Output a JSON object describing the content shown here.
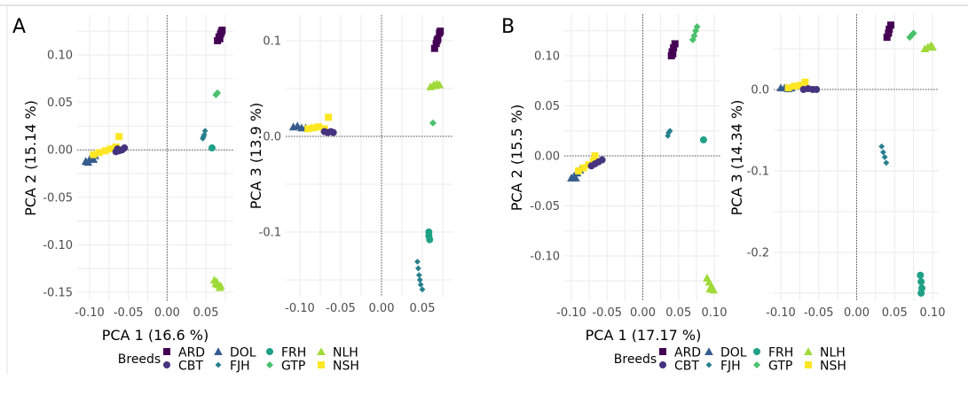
{
  "figure": {
    "letters": [
      "A",
      "B"
    ]
  },
  "legend": {
    "title": "Breeds",
    "entries": [
      {
        "name": "ARD",
        "color": "#440154",
        "shape": "square"
      },
      {
        "name": "CBT",
        "color": "#46337e",
        "shape": "circle"
      },
      {
        "name": "DOL",
        "color": "#365c8d",
        "shape": "triangle"
      },
      {
        "name": "FJH",
        "color": "#277f8e",
        "shape": "diamond-small"
      },
      {
        "name": "FRH",
        "color": "#1fa187",
        "shape": "circle"
      },
      {
        "name": "GTP",
        "color": "#4ac16d",
        "shape": "diamond"
      },
      {
        "name": "NLH",
        "color": "#a0da39",
        "shape": "triangle"
      },
      {
        "name": "NSH",
        "color": "#fde725",
        "shape": "square"
      }
    ]
  },
  "chart_data": [
    {
      "type": "scatter",
      "panel": "A",
      "xlabel": "PCA 1 (16.6 %)",
      "ylabel": "PCA 2 (15.14 %)",
      "xticks": [
        "-0.10",
        "-0.05",
        "0.00",
        "0.05"
      ],
      "xtick_values": [
        -0.1,
        -0.05,
        0.0,
        0.05
      ],
      "yticks": [
        "0.10",
        "0.05",
        "0.00",
        "-0.05",
        "-0.10",
        "-0.15"
      ],
      "ytick_values": [
        0.1,
        0.05,
        0.0,
        -0.05,
        -0.1,
        -0.15
      ],
      "series": {
        "ARD": [
          [
            0.065,
            0.115
          ],
          [
            0.067,
            0.119
          ],
          [
            0.069,
            0.122
          ],
          [
            0.071,
            0.126
          ],
          [
            0.068,
            0.117
          ],
          [
            0.07,
            0.124
          ]
        ],
        "GTP": [
          [
            0.063,
            0.058
          ],
          [
            0.065,
            0.06
          ]
        ],
        "FJH": [
          [
            0.046,
            0.012
          ],
          [
            0.048,
            0.016
          ],
          [
            0.049,
            0.02
          ],
          [
            0.047,
            0.014
          ]
        ],
        "FRH": [
          [
            0.058,
            0.002
          ]
        ],
        "NLH": [
          [
            0.061,
            -0.137
          ],
          [
            0.064,
            -0.139
          ],
          [
            0.066,
            -0.142
          ],
          [
            0.068,
            -0.145
          ],
          [
            0.063,
            -0.141
          ],
          [
            0.069,
            -0.143
          ]
        ],
        "DOL": [
          [
            -0.105,
            -0.012
          ],
          [
            -0.1,
            -0.01
          ],
          [
            -0.097,
            -0.008
          ],
          [
            -0.093,
            -0.006
          ],
          [
            -0.102,
            -0.013
          ],
          [
            -0.095,
            -0.01
          ]
        ],
        "NSH": [
          [
            -0.095,
            -0.005
          ],
          [
            -0.088,
            -0.003
          ],
          [
            -0.08,
            -0.001
          ],
          [
            -0.073,
            0.001
          ],
          [
            -0.066,
            0.003
          ],
          [
            -0.062,
            0.014
          ]
        ],
        "CBT": [
          [
            -0.066,
            -0.002
          ],
          [
            -0.062,
            -0.001
          ],
          [
            -0.058,
            0.0
          ],
          [
            -0.055,
            0.002
          ],
          [
            -0.064,
            0.001
          ]
        ]
      }
    },
    {
      "type": "scatter",
      "panel": "A",
      "xlabel": "",
      "ylabel": "PCA 3 (13.9 %)",
      "xticks": [
        "-0.10",
        "-0.05",
        "0.00",
        "0.05"
      ],
      "xtick_values": [
        -0.1,
        -0.05,
        0.0,
        0.05
      ],
      "yticks": [
        "0.1",
        "0.0",
        "-0.1"
      ],
      "ytick_values": [
        0.1,
        0.0,
        -0.1
      ],
      "series": {
        "ARD": [
          [
            0.065,
            0.092
          ],
          [
            0.067,
            0.097
          ],
          [
            0.069,
            0.102
          ],
          [
            0.071,
            0.108
          ],
          [
            0.068,
            0.1
          ],
          [
            0.072,
            0.11
          ]
        ],
        "NLH": [
          [
            0.06,
            0.052
          ],
          [
            0.064,
            0.054
          ],
          [
            0.068,
            0.055
          ],
          [
            0.071,
            0.054
          ],
          [
            0.066,
            0.053
          ]
        ],
        "GTP": [
          [
            0.063,
            0.014
          ]
        ],
        "FRH": [
          [
            0.058,
            -0.1
          ],
          [
            0.058,
            -0.104
          ],
          [
            0.059,
            -0.108
          ]
        ],
        "FJH": [
          [
            0.044,
            -0.131
          ],
          [
            0.045,
            -0.138
          ],
          [
            0.046,
            -0.145
          ],
          [
            0.047,
            -0.15
          ],
          [
            0.048,
            -0.155
          ],
          [
            0.05,
            -0.16
          ]
        ],
        "DOL": [
          [
            -0.108,
            0.01
          ],
          [
            -0.103,
            0.011
          ],
          [
            -0.098,
            0.009
          ],
          [
            -0.093,
            0.009
          ]
        ],
        "NSH": [
          [
            -0.09,
            0.008
          ],
          [
            -0.083,
            0.009
          ],
          [
            -0.077,
            0.01
          ],
          [
            -0.07,
            0.008
          ],
          [
            -0.065,
            0.02
          ]
        ],
        "CBT": [
          [
            -0.07,
            0.005
          ],
          [
            -0.066,
            0.004
          ],
          [
            -0.062,
            0.005
          ],
          [
            -0.059,
            0.004
          ]
        ]
      }
    },
    {
      "type": "scatter",
      "panel": "B",
      "xlabel": "PCA 1 (17.17 %)",
      "ylabel": "PCA 2 (15.5 %)",
      "xticks": [
        "-0.10",
        "-0.05",
        "0.00",
        "0.05",
        "0.10"
      ],
      "xtick_values": [
        -0.1,
        -0.05,
        0.0,
        0.05,
        0.1
      ],
      "yticks": [
        "0.10",
        "0.05",
        "0.00",
        "-0.05",
        "-0.10"
      ],
      "ytick_values": [
        0.1,
        0.05,
        0.0,
        -0.05,
        -0.1
      ],
      "series": {
        "ARD": [
          [
            0.04,
            0.1
          ],
          [
            0.041,
            0.104
          ],
          [
            0.043,
            0.108
          ],
          [
            0.045,
            0.112
          ],
          [
            0.042,
            0.102
          ]
        ],
        "GTP": [
          [
            0.07,
            0.116
          ],
          [
            0.072,
            0.12
          ],
          [
            0.074,
            0.125
          ],
          [
            0.076,
            0.129
          ]
        ],
        "FJH": [
          [
            0.035,
            0.02
          ],
          [
            0.036,
            0.023
          ],
          [
            0.038,
            0.025
          ]
        ],
        "FRH": [
          [
            0.085,
            0.016
          ]
        ],
        "NLH": [
          [
            0.09,
            -0.122
          ],
          [
            0.093,
            -0.126
          ],
          [
            0.096,
            -0.13
          ],
          [
            0.099,
            -0.134
          ],
          [
            0.094,
            -0.133
          ]
        ],
        "DOL": [
          [
            -0.1,
            -0.022
          ],
          [
            -0.096,
            -0.02
          ],
          [
            -0.092,
            -0.017
          ],
          [
            -0.088,
            -0.014
          ],
          [
            -0.094,
            -0.022
          ]
        ],
        "NSH": [
          [
            -0.09,
            -0.015
          ],
          [
            -0.083,
            -0.012
          ],
          [
            -0.076,
            -0.009
          ],
          [
            -0.069,
            -0.005
          ],
          [
            -0.067,
            0.0
          ]
        ],
        "CBT": [
          [
            -0.072,
            -0.01
          ],
          [
            -0.067,
            -0.008
          ],
          [
            -0.062,
            -0.006
          ],
          [
            -0.057,
            -0.004
          ]
        ]
      }
    },
    {
      "type": "scatter",
      "panel": "B",
      "xlabel": "",
      "ylabel": "PCA 3 (14.34 %)",
      "xticks": [
        "-0.10",
        "-0.05",
        "0.00",
        "0.05",
        "0.10"
      ],
      "xtick_values": [
        -0.1,
        -0.05,
        0.0,
        0.05,
        0.1
      ],
      "yticks": [
        "0.0",
        "-0.1",
        "-0.2"
      ],
      "ytick_values": [
        0.0,
        -0.1,
        -0.2
      ],
      "series": {
        "ARD": [
          [
            0.04,
            0.064
          ],
          [
            0.042,
            0.069
          ],
          [
            0.043,
            0.074
          ],
          [
            0.045,
            0.079
          ]
        ],
        "GTP": [
          [
            0.07,
            0.064
          ],
          [
            0.073,
            0.067
          ],
          [
            0.075,
            0.069
          ]
        ],
        "NLH": [
          [
            0.09,
            0.05
          ],
          [
            0.094,
            0.052
          ],
          [
            0.098,
            0.054
          ],
          [
            0.1,
            0.052
          ]
        ],
        "FJH": [
          [
            0.033,
            -0.07
          ],
          [
            0.035,
            -0.077
          ],
          [
            0.037,
            -0.083
          ],
          [
            0.039,
            -0.09
          ]
        ],
        "FRH": [
          [
            0.084,
            -0.228
          ],
          [
            0.085,
            -0.236
          ],
          [
            0.086,
            -0.244
          ],
          [
            0.085,
            -0.25
          ]
        ],
        "DOL": [
          [
            -0.1,
            0.002
          ],
          [
            -0.095,
            0.002
          ],
          [
            -0.09,
            0.001
          ],
          [
            -0.086,
            0.002
          ]
        ],
        "NSH": [
          [
            -0.09,
            0.002
          ],
          [
            -0.082,
            0.004
          ],
          [
            -0.074,
            0.005
          ],
          [
            -0.068,
            0.009
          ]
        ],
        "CBT": [
          [
            -0.07,
            0.0
          ],
          [
            -0.064,
            0.001
          ],
          [
            -0.058,
            0.0
          ],
          [
            -0.053,
            0.0
          ]
        ]
      }
    }
  ]
}
